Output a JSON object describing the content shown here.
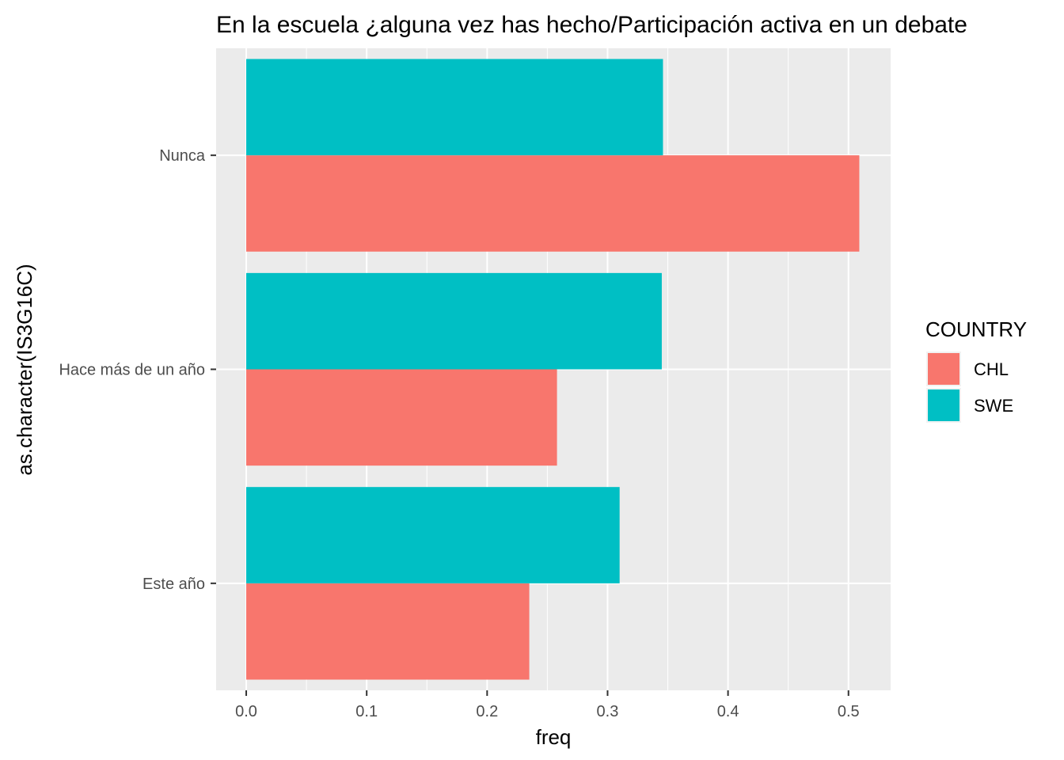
{
  "chart_data": {
    "type": "bar",
    "orientation": "horizontal",
    "title": "En la escuela ¿alguna vez has hecho/Participación activa en un debate",
    "xlabel": "freq",
    "ylabel": "as.character(IS3G16C)",
    "categories": [
      "Nunca",
      "Hace más de un año",
      "Este año"
    ],
    "series": [
      {
        "name": "CHL",
        "color": "#F8766D",
        "values": [
          0.509,
          0.258,
          0.235
        ]
      },
      {
        "name": "SWE",
        "color": "#00BFC4",
        "values": [
          0.346,
          0.345,
          0.31
        ]
      }
    ],
    "xlim": [
      -0.025,
      0.535
    ],
    "xticks": [
      0.0,
      0.1,
      0.2,
      0.3,
      0.4,
      0.5
    ],
    "xtick_labels": [
      "0.0",
      "0.1",
      "0.2",
      "0.3",
      "0.4",
      "0.5"
    ],
    "grid": true,
    "panel_background": "#EBEBEB",
    "legend": {
      "title": "COUNTRY",
      "position": "right",
      "entries": [
        "CHL",
        "SWE"
      ]
    }
  }
}
